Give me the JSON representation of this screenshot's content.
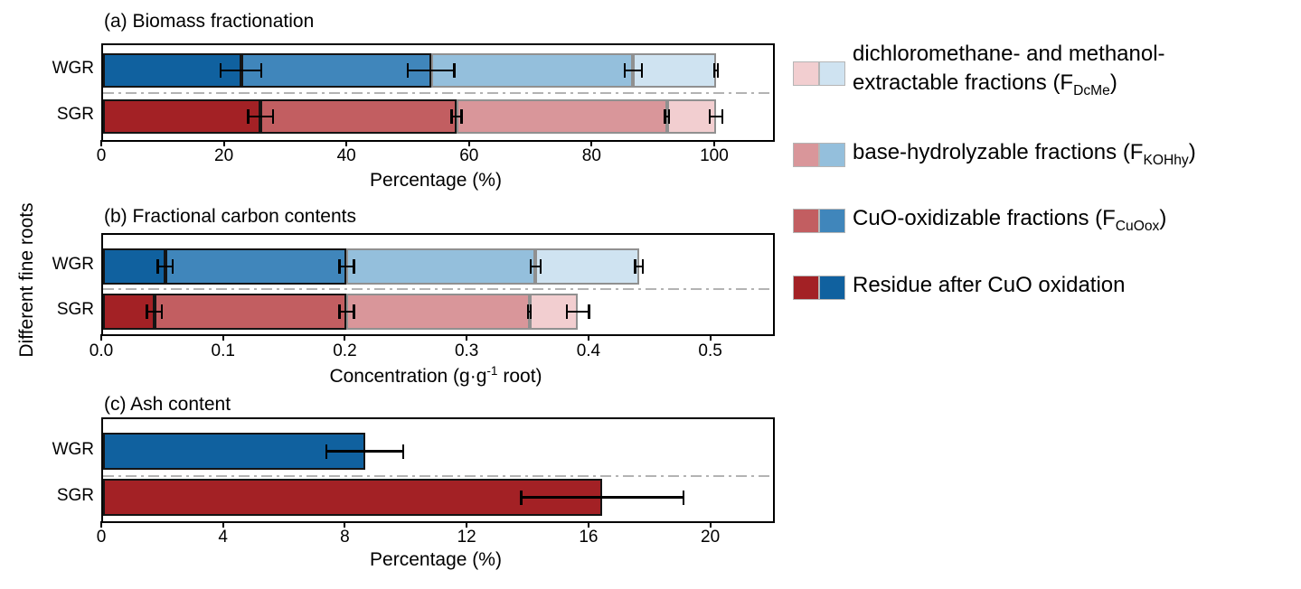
{
  "figure": {
    "ylabel": "Different fine roots",
    "background": "#ffffff"
  },
  "colors": {
    "blue_shades": [
      "#10619f",
      "#4086bb",
      "#94bfdc",
      "#cfe3f1"
    ],
    "red_shades": [
      "#a32125",
      "#c25e61",
      "#d9969a",
      "#f2ced0"
    ],
    "separator_line": "#b3b3b3",
    "errorbar": "#000000",
    "dark_edge": "#141414",
    "light_edge": "#909090"
  },
  "chart_data": [
    {
      "id": "a",
      "type": "bar",
      "subtype": "stacked-horizontal",
      "title": "(a) Biomass fractionation",
      "xlabel": "Percentage (%)",
      "xlabel_parts": [
        {
          "text": "Percentage (%)"
        }
      ],
      "xlim": [
        0,
        109.3
      ],
      "ticks": [
        0,
        20,
        40,
        60,
        80,
        100
      ],
      "tick_labels": [
        "0",
        "20",
        "40",
        "60",
        "80",
        "100"
      ],
      "categories": [
        "WGR",
        "SGR"
      ],
      "series": [
        {
          "name": "Residue after CuO oxidation",
          "values": {
            "WGR": 22.5,
            "SGR": 25.7
          }
        },
        {
          "name": "CuO-oxidizable fractions (FCuOox)",
          "values": {
            "WGR": 31.0,
            "SGR": 32.0
          }
        },
        {
          "name": "base-hydrolyzable fractions (FKOHhy)",
          "values": {
            "WGR": 33.0,
            "SGR": 34.3
          }
        },
        {
          "name": "dichloromethane- and methanol-extractable fractions (FDcMe)",
          "values": {
            "WGR": 13.5,
            "SGR": 8.0
          }
        }
      ],
      "cumulative": {
        "WGR": [
          22.5,
          53.5,
          86.5,
          100
        ],
        "SGR": [
          25.7,
          57.7,
          92.0,
          100
        ]
      },
      "errors": {
        "WGR": [
          3.5,
          4.0,
          1.6,
          0.5
        ],
        "SGR": [
          2.2,
          1.0,
          0.5,
          1.2
        ]
      },
      "grid": false
    },
    {
      "id": "b",
      "type": "bar",
      "subtype": "stacked-horizontal",
      "title": "(b) Fractional carbon contents",
      "xlabel": "Concentration (g·g-1 root)",
      "xlabel_parts": [
        {
          "text": "Concentration (g·g"
        },
        {
          "sup": "-1"
        },
        {
          "text": " root)"
        }
      ],
      "xlim": [
        0,
        0.55
      ],
      "ticks": [
        0,
        0.1,
        0.2,
        0.3,
        0.4,
        0.5
      ],
      "tick_labels": [
        "0.0",
        "0.1",
        "0.2",
        "0.3",
        "0.4",
        "0.5"
      ],
      "categories": [
        "WGR",
        "SGR"
      ],
      "series": [
        {
          "name": "Residue after CuO oxidation",
          "values": {
            "WGR": 0.051,
            "SGR": 0.042
          }
        },
        {
          "name": "CuO-oxidizable fractions (FCuOox)",
          "values": {
            "WGR": 0.149,
            "SGR": 0.158
          }
        },
        {
          "name": "base-hydrolyzable fractions (FKOHhy)",
          "values": {
            "WGR": 0.155,
            "SGR": 0.15
          }
        },
        {
          "name": "dichloromethane- and methanol-extractable fractions (FDcMe)",
          "values": {
            "WGR": 0.085,
            "SGR": 0.04
          }
        }
      ],
      "cumulative": {
        "WGR": [
          0.051,
          0.2,
          0.355,
          0.44
        ],
        "SGR": [
          0.042,
          0.2,
          0.35,
          0.39
        ]
      },
      "errors": {
        "WGR": [
          0.007,
          0.007,
          0.005,
          0.004
        ],
        "SGR": [
          0.007,
          0.007,
          0.002,
          0.01
        ]
      },
      "grid": false
    },
    {
      "id": "c",
      "type": "bar",
      "subtype": "horizontal",
      "title": "(c) Ash content",
      "xlabel": "Percentage (%)",
      "xlabel_parts": [
        {
          "text": "Percentage (%)"
        }
      ],
      "xlim": [
        0,
        22
      ],
      "ticks": [
        0,
        4,
        8,
        12,
        16,
        20
      ],
      "tick_labels": [
        "0",
        "4",
        "8",
        "12",
        "16",
        "20"
      ],
      "categories": [
        "WGR",
        "SGR"
      ],
      "series": [
        {
          "name": "Ash content",
          "values": {
            "WGR": 8.6,
            "SGR": 16.4
          }
        }
      ],
      "cumulative": {
        "WGR": [
          8.6
        ],
        "SGR": [
          16.4
        ]
      },
      "errors": {
        "WGR": [
          1.3
        ],
        "SGR": [
          2.7
        ]
      },
      "grid": false
    }
  ],
  "legend": {
    "position": "right",
    "entries": [
      {
        "name": "dcme",
        "label": "dichloromethane- and methanol-extractable fractions (FDcMe)",
        "swatch_red": "#f2ced0",
        "swatch_blue": "#cfe3f1",
        "lines": [
          [
            {
              "text": "dichloromethane- and methanol-"
            }
          ],
          [
            {
              "text": "extractable fractions (F"
            },
            {
              "sub": "DcMe"
            },
            {
              "text": ")"
            }
          ]
        ]
      },
      {
        "name": "kohhy",
        "label": "base-hydrolyzable fractions (FKOHhy)",
        "swatch_red": "#d9969a",
        "swatch_blue": "#94bfdc",
        "lines": [
          [
            {
              "text": "base-hydrolyzable fractions (F"
            },
            {
              "sub": "KOHhy"
            },
            {
              "text": ")"
            }
          ]
        ]
      },
      {
        "name": "cuoox",
        "label": "CuO-oxidizable fractions (FCuOox)",
        "swatch_red": "#c25e61",
        "swatch_blue": "#4086bb",
        "lines": [
          [
            {
              "text": "CuO-oxidizable fractions (F"
            },
            {
              "sub": "CuOox"
            },
            {
              "text": ")"
            }
          ]
        ]
      },
      {
        "name": "residue",
        "label": "Residue after CuO oxidation",
        "swatch_red": "#a32125",
        "swatch_blue": "#10619f",
        "lines": [
          [
            {
              "text": "Residue after CuO oxidation"
            }
          ]
        ]
      }
    ]
  }
}
